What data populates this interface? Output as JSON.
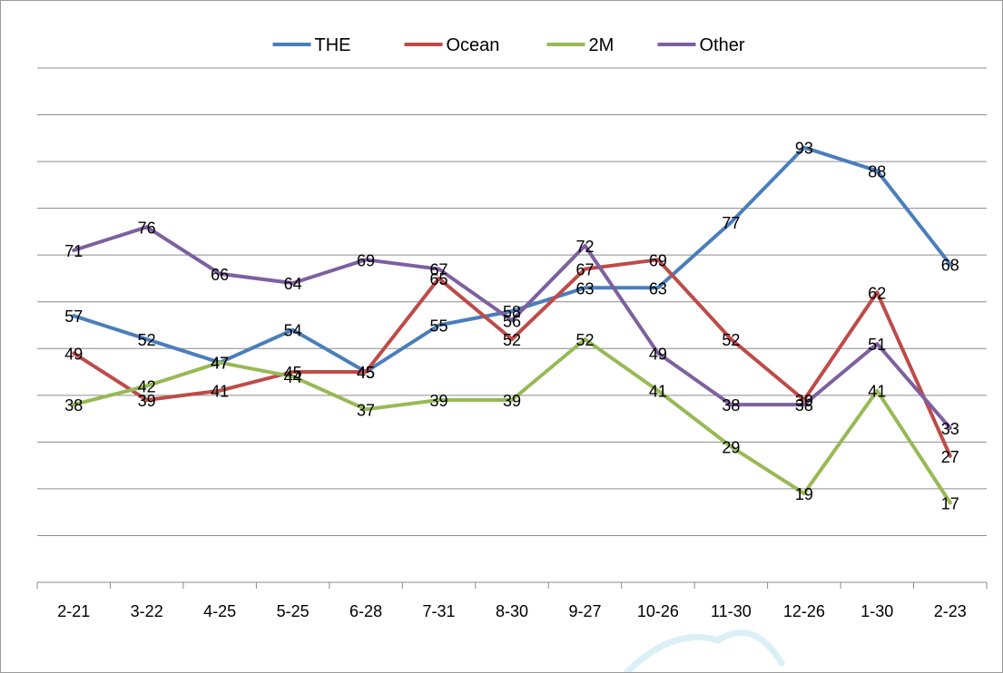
{
  "chart_data": {
    "type": "line",
    "categories": [
      "2-21",
      "3-22",
      "4-25",
      "5-25",
      "6-28",
      "7-31",
      "8-30",
      "9-27",
      "10-26",
      "11-30",
      "12-26",
      "1-30",
      "2-23"
    ],
    "series": [
      {
        "name": "THE",
        "color": "#4a7ebb",
        "values": [
          57,
          52,
          47,
          54,
          45,
          55,
          58,
          63,
          63,
          77,
          93,
          88,
          68
        ]
      },
      {
        "name": "Ocean",
        "color": "#be4b48",
        "values": [
          49,
          39,
          41,
          45,
          45,
          65,
          52,
          67,
          69,
          52,
          39,
          62,
          27
        ]
      },
      {
        "name": "2M",
        "color": "#98b954",
        "values": [
          38,
          42,
          47,
          44,
          37,
          39,
          39,
          52,
          41,
          29,
          19,
          41,
          17
        ]
      },
      {
        "name": "Other",
        "color": "#7d60a0",
        "values": [
          71,
          76,
          66,
          64,
          69,
          67,
          56,
          72,
          49,
          38,
          38,
          51,
          33
        ]
      }
    ],
    "ylim": [
      0,
      110
    ],
    "grid": true,
    "legend_position": "top-center",
    "title": "",
    "xlabel": "",
    "ylabel": ""
  }
}
